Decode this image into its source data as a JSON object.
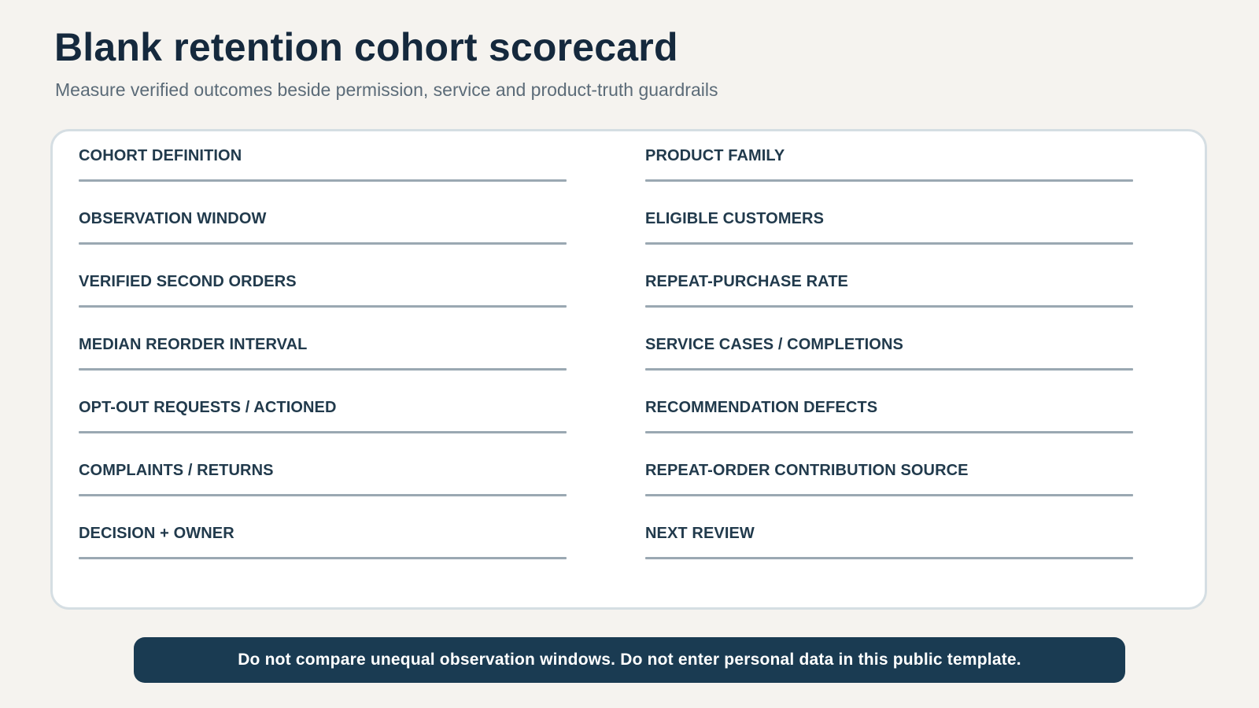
{
  "header": {
    "title": "Blank retention cohort scorecard",
    "subtitle": "Measure verified outcomes beside permission, service and product-truth guardrails"
  },
  "fields": [
    {
      "label": "COHORT DEFINITION",
      "value": ""
    },
    {
      "label": "PRODUCT FAMILY",
      "value": ""
    },
    {
      "label": "OBSERVATION WINDOW",
      "value": ""
    },
    {
      "label": "ELIGIBLE CUSTOMERS",
      "value": ""
    },
    {
      "label": "VERIFIED SECOND ORDERS",
      "value": ""
    },
    {
      "label": "REPEAT-PURCHASE RATE",
      "value": ""
    },
    {
      "label": "MEDIAN REORDER INTERVAL",
      "value": ""
    },
    {
      "label": "SERVICE CASES / COMPLETIONS",
      "value": ""
    },
    {
      "label": "OPT-OUT REQUESTS / ACTIONED",
      "value": ""
    },
    {
      "label": "RECOMMENDATION DEFECTS",
      "value": ""
    },
    {
      "label": "COMPLAINTS / RETURNS",
      "value": ""
    },
    {
      "label": "REPEAT-ORDER CONTRIBUTION SOURCE",
      "value": ""
    },
    {
      "label": "DECISION + OWNER",
      "value": ""
    },
    {
      "label": "NEXT REVIEW",
      "value": ""
    }
  ],
  "notice": {
    "text": "Do not compare unequal observation windows. Do not enter personal data in this public template."
  },
  "colors": {
    "background": "#f5f3ef",
    "title": "#15293d",
    "subtitle": "#5b6b78",
    "card_border": "#d5dee3",
    "field_line": "#9aa8b2",
    "notice_background": "#1a3b52",
    "notice_text": "#ffffff"
  }
}
